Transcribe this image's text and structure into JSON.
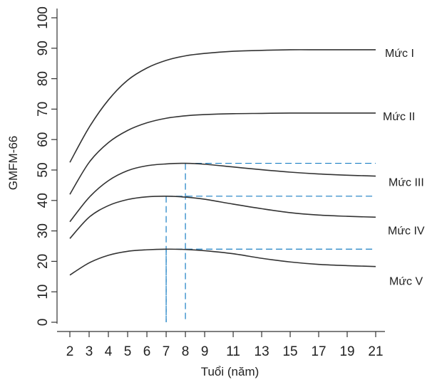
{
  "chart_data": {
    "type": "line",
    "xlabel": "Tuổi (năm)",
    "ylabel": "GMFM-66",
    "xlim": [
      2,
      21
    ],
    "ylim": [
      0,
      100
    ],
    "x_ticks": [
      2,
      3,
      4,
      5,
      6,
      7,
      8,
      9,
      11,
      13,
      15,
      17,
      19,
      21
    ],
    "y_ticks": [
      0,
      10,
      20,
      30,
      40,
      50,
      60,
      70,
      80,
      90,
      100
    ],
    "grid": false,
    "legend": "inline-right",
    "colors": {
      "curve": "#333333",
      "reference": "#1a7fc4"
    },
    "series": [
      {
        "name": "Mức I",
        "peak_age": null,
        "x": [
          2,
          3,
          4,
          5,
          6,
          7,
          8,
          9,
          11,
          13,
          15,
          17,
          19,
          21
        ],
        "y": [
          52.5,
          64,
          73,
          79.5,
          83.5,
          86,
          87.5,
          88.3,
          89,
          89.3,
          89.5,
          89.5,
          89.5,
          89.5
        ]
      },
      {
        "name": "Mức II",
        "peak_age": null,
        "x": [
          2,
          3,
          4,
          5,
          6,
          7,
          8,
          9,
          11,
          13,
          15,
          17,
          19,
          21
        ],
        "y": [
          42,
          52.5,
          59,
          63,
          65.5,
          67,
          67.8,
          68.2,
          68.5,
          68.6,
          68.7,
          68.7,
          68.7,
          68.7
        ]
      },
      {
        "name": "Mức III",
        "peak_age": 8,
        "x": [
          2,
          3,
          4,
          5,
          6,
          7,
          8,
          9,
          11,
          13,
          15,
          17,
          19,
          21
        ],
        "y": [
          33,
          41,
          46.5,
          49.8,
          51.4,
          52,
          52.2,
          51.9,
          51,
          50.1,
          49.3,
          48.7,
          48.3,
          48
        ]
      },
      {
        "name": "Mức IV",
        "peak_age": 7,
        "x": [
          2,
          3,
          4,
          5,
          6,
          7,
          8,
          9,
          11,
          13,
          15,
          17,
          19,
          21
        ],
        "y": [
          27.5,
          34.5,
          38.3,
          40.3,
          41.2,
          41.4,
          41.1,
          40.4,
          38.8,
          37.3,
          36,
          35.2,
          34.8,
          34.5
        ]
      },
      {
        "name": "Mức V",
        "peak_age": 7,
        "x": [
          2,
          3,
          4,
          5,
          6,
          7,
          8,
          9,
          11,
          13,
          15,
          17,
          19,
          21
        ],
        "y": [
          15.5,
          19.5,
          22,
          23.3,
          23.8,
          24,
          23.9,
          23.5,
          22.5,
          21,
          19.8,
          19,
          18.6,
          18.3
        ]
      }
    ]
  }
}
